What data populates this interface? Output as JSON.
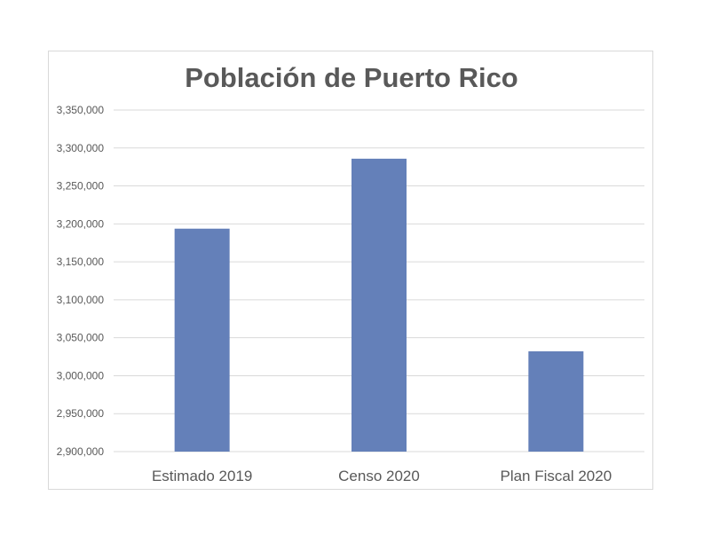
{
  "chart_data": {
    "type": "bar",
    "title": "Población de Puerto Rico",
    "categories": [
      "Estimado 2019",
      "Censo 2020",
      "Plan Fiscal 2020"
    ],
    "values": [
      3193694,
      3285874,
      3032165
    ],
    "ylim": [
      2900000,
      3350000
    ],
    "yticks": [
      "2,900,000",
      "2,950,000",
      "3,000,000",
      "3,050,000",
      "3,100,000",
      "3,150,000",
      "3,200,000",
      "3,250,000",
      "3,300,000",
      "3,350,000"
    ],
    "ytick_values": [
      2900000,
      2950000,
      3000000,
      3050000,
      3100000,
      3150000,
      3200000,
      3250000,
      3300000,
      3350000
    ],
    "grid": true,
    "bar_color": "#6480b9",
    "grid_color": "#d9d9d9",
    "legend": "none"
  }
}
